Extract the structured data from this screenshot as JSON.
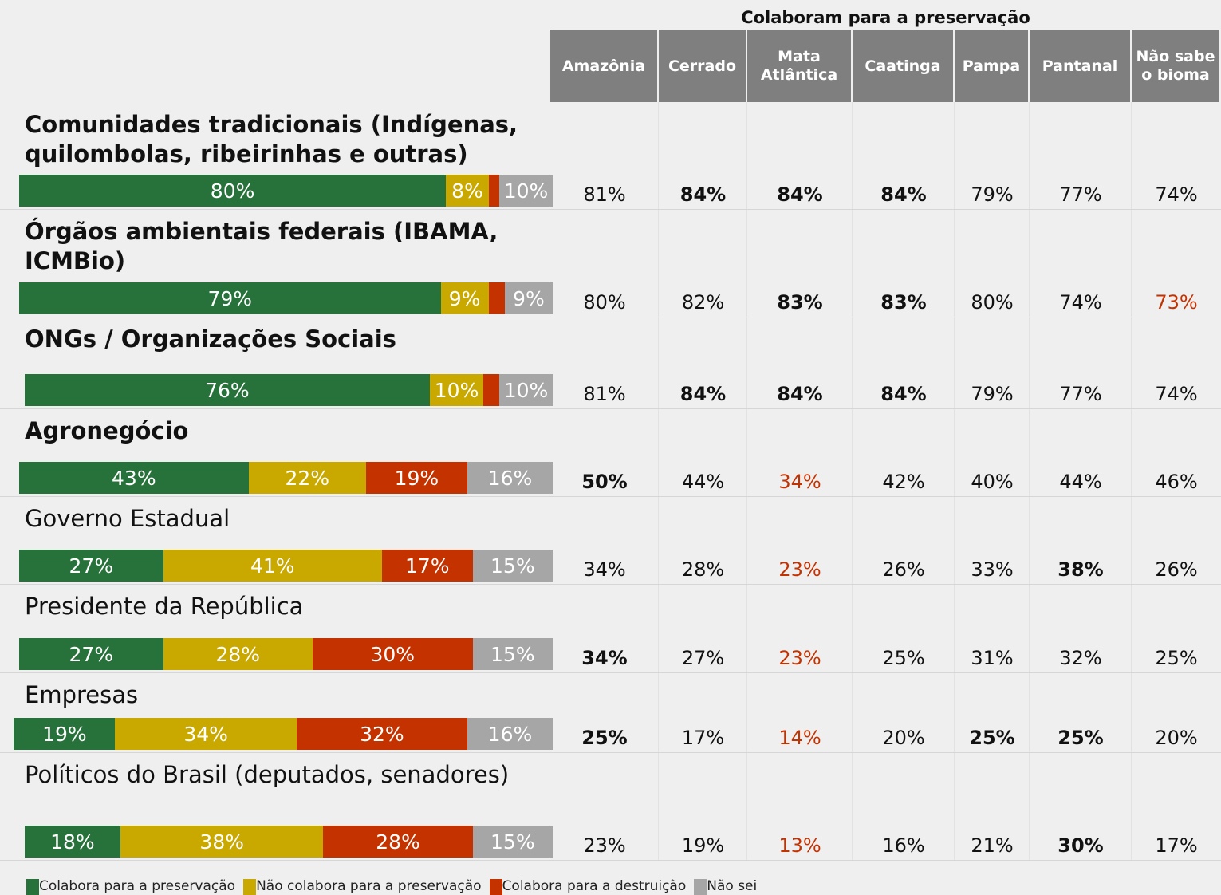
{
  "chart_data": {
    "type": "hbar",
    "stacked": true,
    "categories": [
      "Comunidades tradicionais (Indígenas, quilombolas, ribeirinhas e outras)",
      "Órgãos ambientais federais (IBAMA, ICMBio)",
      "ONGs / Organizações Sociais",
      "Agronegócio",
      "Governo Estadual",
      "Presidente da República",
      "Empresas",
      "Políticos do Brasil (deputados, senadores)"
    ],
    "label_bold": [
      true,
      true,
      true,
      true,
      false,
      false,
      false,
      false
    ],
    "series": [
      {
        "name": "Colabora para a preservação",
        "color": "#27723a",
        "values": [
          80,
          79,
          76,
          43,
          27,
          27,
          19,
          18
        ],
        "value_labels": [
          "80%",
          "79%",
          "76%",
          "43%",
          "27%",
          "27%",
          "19%",
          "18%"
        ]
      },
      {
        "name": "Não colabora para a preservação",
        "color": "#c9a800",
        "values": [
          8,
          9,
          10,
          22,
          41,
          28,
          34,
          38
        ],
        "value_labels": [
          "8%",
          "9%",
          "10%",
          "22%",
          "41%",
          "28%",
          "34%",
          "38%"
        ]
      },
      {
        "name": "Colabora para a destruição",
        "color": "#c43200",
        "values": [
          2,
          3,
          3,
          19,
          17,
          30,
          32,
          28
        ],
        "value_labels": [
          null,
          null,
          null,
          "19%",
          "17%",
          "30%",
          "32%",
          "28%"
        ]
      },
      {
        "name": "Não sei",
        "color": "#a6a6a6",
        "values": [
          10,
          9,
          10,
          16,
          15,
          15,
          16,
          15
        ],
        "value_labels": [
          "10%",
          "9%",
          "10%",
          "16%",
          "15%",
          "15%",
          "16%",
          "15%"
        ]
      }
    ],
    "table": {
      "title": "Colaboram para a preservação",
      "columns": [
        "Amazônia",
        "Cerrado",
        "Mata Atlântica",
        "Caatinga",
        "Pampa",
        "Pantanal",
        "Não sabe o bioma"
      ],
      "values": [
        [
          81,
          84,
          84,
          84,
          79,
          77,
          74
        ],
        [
          80,
          82,
          83,
          83,
          80,
          74,
          73
        ],
        [
          81,
          84,
          84,
          84,
          79,
          77,
          74
        ],
        [
          50,
          44,
          34,
          42,
          40,
          44,
          46
        ],
        [
          34,
          28,
          23,
          26,
          33,
          38,
          26
        ],
        [
          34,
          27,
          23,
          25,
          31,
          32,
          25
        ],
        [
          25,
          17,
          14,
          20,
          25,
          25,
          20
        ],
        [
          23,
          19,
          13,
          16,
          21,
          30,
          17
        ]
      ],
      "value_labels": [
        [
          "81%",
          "84%",
          "84%",
          "84%",
          "79%",
          "77%",
          "74%"
        ],
        [
          "80%",
          "82%",
          "83%",
          "83%",
          "80%",
          "74%",
          "73%"
        ],
        [
          "81%",
          "84%",
          "84%",
          "84%",
          "79%",
          "77%",
          "74%"
        ],
        [
          "50%",
          "44%",
          "34%",
          "42%",
          "40%",
          "44%",
          "46%"
        ],
        [
          "34%",
          "28%",
          "23%",
          "26%",
          "33%",
          "38%",
          "26%"
        ],
        [
          "34%",
          "27%",
          "23%",
          "25%",
          "31%",
          "32%",
          "25%"
        ],
        [
          "25%",
          "17%",
          "14%",
          "20%",
          "25%",
          "25%",
          "20%"
        ],
        [
          "23%",
          "19%",
          "13%",
          "16%",
          "21%",
          "30%",
          "17%"
        ]
      ],
      "styles": [
        [
          "normal",
          "bold",
          "bold",
          "bold",
          "normal",
          "normal",
          "normal"
        ],
        [
          "normal",
          "normal",
          "bold",
          "bold",
          "normal",
          "normal",
          "red"
        ],
        [
          "normal",
          "bold",
          "bold",
          "bold",
          "normal",
          "normal",
          "normal"
        ],
        [
          "bold",
          "normal",
          "red",
          "normal",
          "normal",
          "normal",
          "normal"
        ],
        [
          "normal",
          "normal",
          "red",
          "normal",
          "normal",
          "bold",
          "normal"
        ],
        [
          "bold",
          "normal",
          "red",
          "normal",
          "normal",
          "normal",
          "normal"
        ],
        [
          "bold",
          "normal",
          "red",
          "normal",
          "bold",
          "bold",
          "normal"
        ],
        [
          "normal",
          "normal",
          "red",
          "normal",
          "normal",
          "bold",
          "normal"
        ]
      ],
      "red_color": "#c43200"
    }
  }
}
